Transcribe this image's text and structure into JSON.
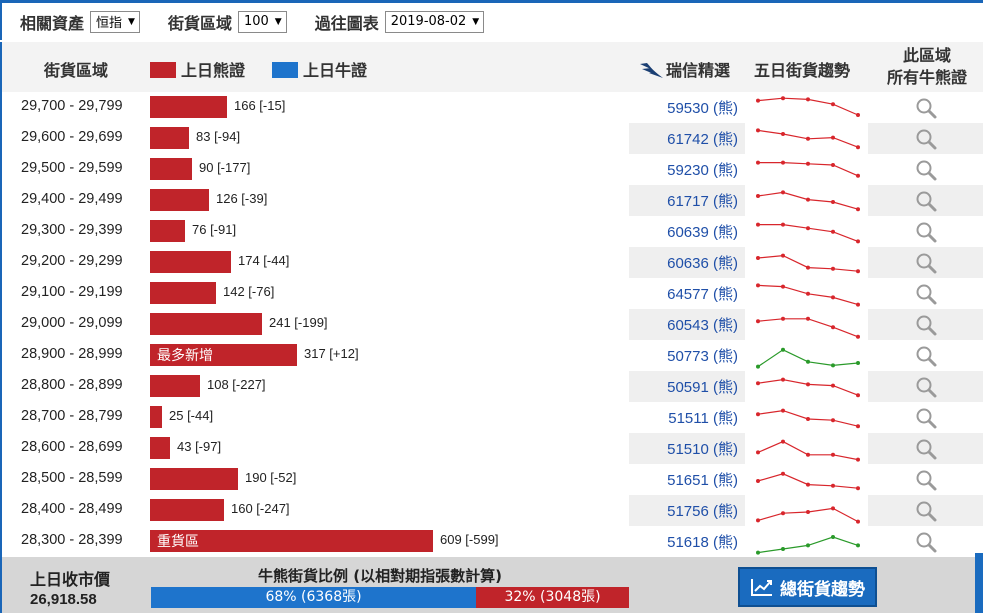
{
  "filters": {
    "asset_label": "相關資產",
    "asset_value": "恒指",
    "zone_label": "街貨區域",
    "zone_value": "100",
    "history_label": "過往圖表",
    "history_value": "2019-08-02"
  },
  "header": {
    "zone": "街貨區域",
    "bear_legend": "上日熊證",
    "bull_legend": "上日牛證",
    "ubs": "瑞信精選",
    "trend": "五日街貨趨勢",
    "all_line1": "此區域",
    "all_line2": "所有牛熊證"
  },
  "colors": {
    "bear": "#c0242a",
    "bull": "#1e74cc",
    "link": "#1f4fa8"
  },
  "rows": [
    {
      "range": "29,700 - 29,799",
      "value": 166,
      "label": "166 [-15]",
      "tag": "",
      "code": "59530 (熊)",
      "trend": [
        3,
        1,
        2,
        6,
        15
      ],
      "up": false
    },
    {
      "range": "29,600 - 29,699",
      "value": 83,
      "label": "83 [-94]",
      "tag": "",
      "code": "61742 (熊)",
      "trend": [
        2,
        5,
        9,
        8,
        16
      ],
      "up": false
    },
    {
      "range": "29,500 - 29,599",
      "value": 90,
      "label": "90 [-177]",
      "tag": "",
      "code": "59230 (熊)",
      "trend": [
        3,
        3,
        4,
        5,
        14
      ],
      "up": false
    },
    {
      "range": "29,400 - 29,499",
      "value": 126,
      "label": "126 [-39]",
      "tag": "",
      "code": "61717 (熊)",
      "trend": [
        5,
        2,
        8,
        10,
        16
      ],
      "up": false
    },
    {
      "range": "29,300 - 29,399",
      "value": 76,
      "label": "76 [-91]",
      "tag": "",
      "code": "60639 (熊)",
      "trend": [
        3,
        3,
        6,
        9,
        17
      ],
      "up": false
    },
    {
      "range": "29,200 - 29,299",
      "value": 174,
      "label": "174 [-44]",
      "tag": "",
      "code": "60636 (熊)",
      "trend": [
        5,
        3,
        13,
        14,
        16
      ],
      "up": false
    },
    {
      "range": "29,100 - 29,199",
      "value": 142,
      "label": "142 [-76]",
      "tag": "",
      "code": "64577 (熊)",
      "trend": [
        2,
        3,
        9,
        12,
        18
      ],
      "up": false
    },
    {
      "range": "29,000 - 29,099",
      "value": 241,
      "label": "241 [-199]",
      "tag": "",
      "code": "60543 (熊)",
      "trend": [
        6,
        4,
        4,
        11,
        19
      ],
      "up": false
    },
    {
      "range": "28,900 - 28,999",
      "value": 317,
      "label": "317 [+12]",
      "tag": "最多新增",
      "code": "50773 (熊)",
      "trend": [
        18,
        4,
        14,
        17,
        15
      ],
      "up": true
    },
    {
      "range": "28,800 - 28,899",
      "value": 108,
      "label": "108 [-227]",
      "tag": "",
      "code": "50591 (熊)",
      "trend": [
        6,
        3,
        7,
        8,
        16
      ],
      "up": false
    },
    {
      "range": "28,700 - 28,799",
      "value": 25,
      "label": "25 [-44]",
      "tag": "",
      "code": "51511 (熊)",
      "trend": [
        6,
        3,
        10,
        11,
        16
      ],
      "up": false
    },
    {
      "range": "28,600 - 28,699",
      "value": 43,
      "label": "43 [-97]",
      "tag": "",
      "code": "51510 (熊)",
      "trend": [
        12,
        3,
        14,
        14,
        18
      ],
      "up": false
    },
    {
      "range": "28,500 - 28,599",
      "value": 190,
      "label": "190 [-52]",
      "tag": "",
      "code": "51651 (熊)",
      "trend": [
        10,
        4,
        13,
        14,
        16
      ],
      "up": false
    },
    {
      "range": "28,400 - 28,499",
      "value": 160,
      "label": "160 [-247]",
      "tag": "",
      "code": "51756 (熊)",
      "trend": [
        17,
        11,
        10,
        7,
        18
      ],
      "up": false
    },
    {
      "range": "28,300 - 28,399",
      "value": 609,
      "label": "609 [-599]",
      "tag": "重貨區",
      "code": "51618 (熊)",
      "trend": [
        18,
        15,
        12,
        5,
        12
      ],
      "up": true
    }
  ],
  "footer": {
    "close_label": "上日收市價",
    "close_value": "26,918.58",
    "ratio_title": "牛熊街貨比例 (以相對期指張數計算)",
    "bull_text": "68% (6368張)",
    "bear_text": "32% (3048張)",
    "bull_fraction": 0.68,
    "trend_button": "總街貨趨勢"
  }
}
